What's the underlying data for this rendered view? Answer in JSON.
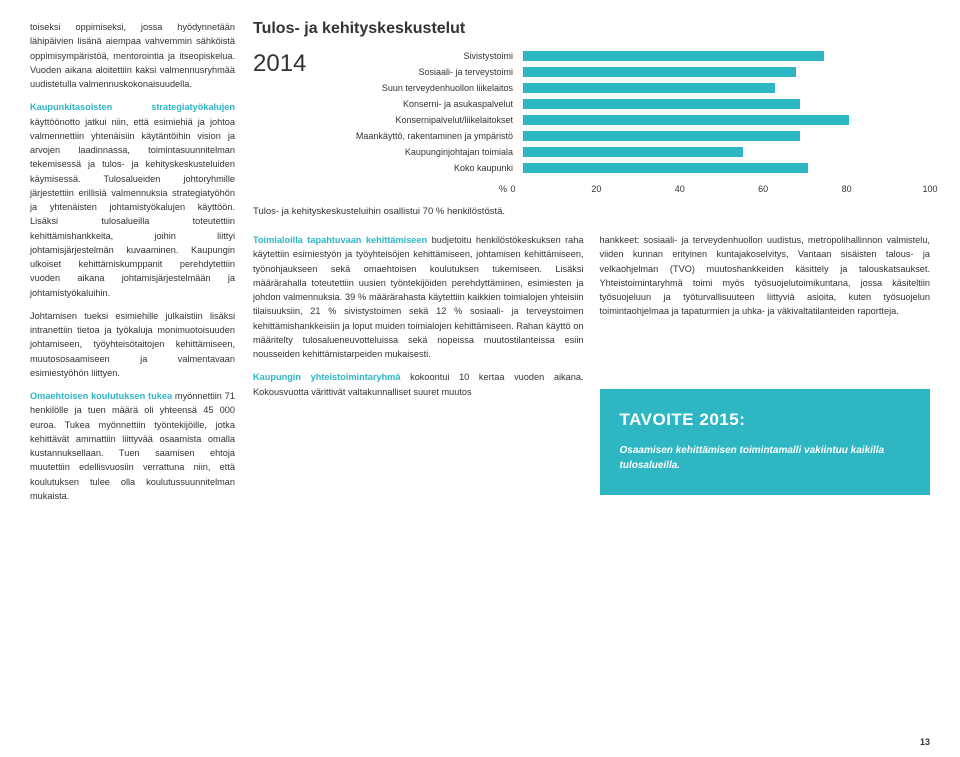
{
  "colors": {
    "cyan": "#2fb6c3",
    "goal_bg": "#2fb6c3",
    "text": "#333333"
  },
  "left": {
    "p1_lead": "",
    "p1": "toiseksi oppimiseksi, jossa hyödynnetään lähipäivien lisänä aiempaa vahvemmin sähköistä oppimisympäristöä, mentorointia ja itseopiskelua. Vuoden aikana aloitettiin kaksi valmennusryhmää uudistetulla valmennuskokonaisuudella.",
    "p2_lead": "Kaupunkitasoisten strategiatyökalujen",
    "p2": " käyttöönotto jatkui niin, että esimiehiä ja johtoa valmennettiin yhtenäisiin käytäntöihin vision ja arvojen laadinnassa, toimintasuunnitelman tekemisessä ja tulos- ja kehityskeskusteluiden käymisessä. Tulosalueiden johtoryhmille järjestettiin erillisiä valmennuksia strategiatyöhön ja yhtenäisten johtamistyökalujen käyttöön. Lisäksi tulosalueilla toteutettiin kehittämishankkeita, joihin liittyi johtamisjärjestelmän kuvaaminen. Kaupungin ulkoiset kehittämiskumppanit perehdytettiin vuoden aikana johtamisjärjestelmään ja johtamistyökaluihin.",
    "p3": "Johtamisen tueksi esimiehille julkaistiin lisäksi intranettiin tietoa ja työkaluja monimuotoisuuden johtamiseen, työyhteisötaitojen kehittämiseen, muutososaamiseen ja valmentavaan esimiestyöhön liittyen.",
    "p4_lead": "Omaehtoisen koulutuksen tukea",
    "p4": " myönnettiin 71 henkilölle ja tuen määrä oli yhteensä 45 000 euroa. Tukea myönnettiin työntekijöille, jotka kehittävät ammattiin liittyvää osaamista omalla kustannuksellaan. Tuen saamisen ehtoja muutettiin edellisvuosiin verrattuna niin, että koulutuksen tulee olla koulutussuunnitelman mukaista."
  },
  "chart": {
    "title": "Tulos- ja kehityskeskustelut",
    "year": "2014",
    "categories": [
      "Sivistystoimi",
      "Sosiaali- ja terveystoimi",
      "Suun terveydenhuollon liikelaitos",
      "Konserni- ja asukaspalvelut",
      "Konsernipalvelut/liikelaitokset",
      "Maankäyttö, rakentaminen ja ympäristö",
      "Kaupunginjohtajan toimiala",
      "Koko kaupunki"
    ],
    "values": [
      74,
      67,
      62,
      68,
      80,
      68,
      54,
      70
    ],
    "xmax": 100,
    "ticks": [
      0,
      20,
      40,
      60,
      80,
      100
    ],
    "pct_label": "%",
    "bar_color": "#2fb6c3",
    "note": "Tulos- ja kehityskeskusteluihin osallistui 70 % henkilöstöstä."
  },
  "mid": {
    "p1_lead": "Toimialoilla tapahtuvaan kehittämiseen",
    "p1": " budjetoitu henkilöstökeskuksen raha käytettiin esimiestyön ja työyhteisöjen kehittämiseen, johtamisen kehittämiseen, työnohjaukseen sekä omaehtoisen koulutuksen tukemiseen. Lisäksi määrärahalla toteutettiin uusien työntekijöiden perehdyttäminen, esimiesten ja johdon valmennuksia. 39 % määrärahasta käytettiin kaikkien toimialojen yhteisiin tilaisuuksiin, 21 % sivistystoimen sekä 12 % sosiaali- ja terveystoimen kehittämishankkeisiin ja loput muiden toimialojen kehittämiseen. Rahan käyttö on määritelty tulosalueneuvotteluissa sekä nopeissa muutostilanteissa esiin nousseiden kehittämistarpeiden mukaisesti.",
    "p2_lead": "Kaupungin yhteistoimintaryhmä",
    "p2": " kokoontui 10 kertaa vuoden aikana. Kokousvuotta värittivät valtakunnalliset suuret muutos"
  },
  "right": {
    "p1": "hankkeet: sosiaali- ja terveydenhuollon uudistus, metropolihallinnon valmistelu, viiden kunnan erityinen kuntajakoselvitys, Vantaan sisäisten talous- ja velkaohjelman (TVO) muutoshankkeiden käsittely ja talouskatsaukset. Yhteistoimintaryhmä toimi myös työsuojelutoimikuntana, jossa käsiteltiin työsuojeluun ja työturvallisuuteen liittyviä asioita, kuten työsuojelun toimintaohjelmaa ja tapaturmien ja uhka- ja väkivaltatilanteiden raportteja."
  },
  "goal": {
    "title": "TAVOITE 2015:",
    "body": "Osaamisen kehittämisen toimintamalli vakiintuu kaikilla tulosalueilla."
  },
  "page": "13"
}
